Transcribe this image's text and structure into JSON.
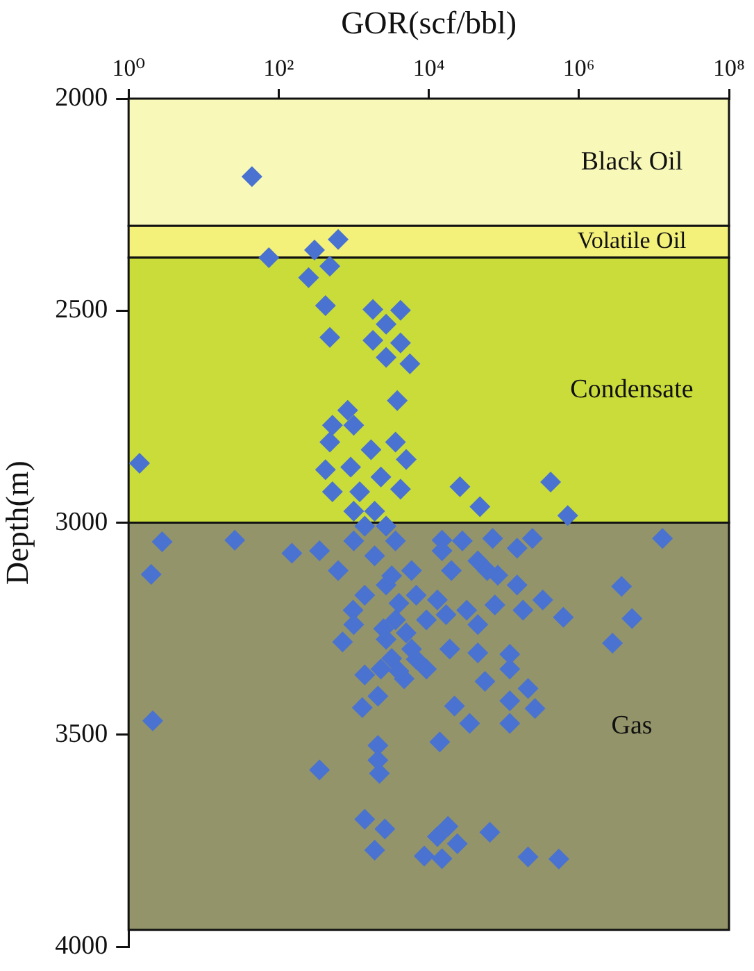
{
  "chart_data": {
    "type": "scatter",
    "xlabel": "GOR(scf/bbl)",
    "ylabel": "Depth(m)",
    "log": "x",
    "grid": false,
    "marker": "diamond",
    "legend": false,
    "xlim": [
      1,
      100000000
    ],
    "xticks": [
      {
        "value": 1,
        "label": "10⁰"
      },
      {
        "value": 100,
        "label": "10²"
      },
      {
        "value": 10000,
        "label": "10⁴"
      },
      {
        "value": 1000000,
        "label": "10⁶"
      },
      {
        "value": 100000000,
        "label": "10⁸"
      }
    ],
    "ylim": [
      4000,
      2000
    ],
    "yticks": [
      2000,
      2500,
      3000,
      3500,
      4000
    ],
    "bands": [
      {
        "axis": "y",
        "from": 2000,
        "to": 2300,
        "label": "Black Oil",
        "color": "#f8f9b8"
      },
      {
        "axis": "y",
        "from": 2300,
        "to": 2375,
        "label": "Volatile Oil",
        "color": "#f3f17a"
      },
      {
        "axis": "y",
        "from": 2375,
        "to": 3000,
        "label": "Condensate",
        "color": "#c9dc3a"
      },
      {
        "axis": "y",
        "from": 3000,
        "to": 3960,
        "label": "Gas",
        "color": "#93946a"
      }
    ],
    "series": [
      {
        "color": "#4a72d0",
        "x": [
          44,
          620,
          74,
          300,
          480,
          250,
          420,
          1800,
          4200,
          2700,
          480,
          1800,
          4200,
          2700,
          5600,
          3800,
          830,
          520,
          480,
          1000,
          3600,
          5000,
          1700,
          1.4,
          420,
          910,
          2300,
          1200,
          520,
          4200,
          26000,
          420000,
          48000,
          710000,
          1000,
          1900,
          1400,
          2700,
          2.8,
          26,
          2.0,
          150,
          350,
          620,
          1000,
          1900,
          3600,
          5900,
          15000,
          28000,
          15000,
          71000,
          150000,
          240000,
          13000000,
          20000,
          45000,
          83000,
          150000,
          60000,
          3700000,
          5100000,
          2800000,
          330000,
          620000,
          180000,
          76000,
          32000,
          13000,
          6800,
          2700,
          1400,
          980,
          1000,
          710,
          3600,
          9300,
          17000,
          45000,
          2700,
          5900,
          19000,
          45000,
          120000,
          120000,
          56000,
          210000,
          260000,
          120000,
          120000,
          35000,
          22000,
          14000,
          4700,
          2300,
          1400,
          1300,
          2100,
          9300,
          6800,
          2.1,
          2100,
          2100,
          2200,
          350,
          1400,
          2600,
          1900,
          8700,
          13000,
          18000,
          24000,
          15000,
          65000,
          210000,
          540000,
          3200,
          4000,
          2500,
          5000,
          3200,
          4000
        ],
        "values": [
          2184,
          2332,
          2375,
          2357,
          2395,
          2422,
          2488,
          2497,
          2499,
          2532,
          2563,
          2570,
          2576,
          2610,
          2625,
          2712,
          2735,
          2770,
          2810,
          2770,
          2810,
          2851,
          2828,
          2860,
          2875,
          2869,
          2892,
          2927,
          2927,
          2921,
          2915,
          2904,
          2962,
          2983,
          2973,
          2973,
          3008,
          3008,
          3045,
          3041,
          3122,
          3072,
          3066,
          3113,
          3043,
          3078,
          3043,
          3113,
          3041,
          3043,
          3066,
          3037,
          3060,
          3037,
          3037,
          3113,
          3090,
          3124,
          3147,
          3113,
          3150,
          3226,
          3284,
          3182,
          3223,
          3206,
          3194,
          3206,
          3182,
          3171,
          3147,
          3171,
          3206,
          3240,
          3281,
          3229,
          3229,
          3217,
          3240,
          3275,
          3298,
          3298,
          3307,
          3310,
          3345,
          3374,
          3391,
          3438,
          3420,
          3473,
          3473,
          3432,
          3517,
          3368,
          3345,
          3359,
          3436,
          3409,
          3345,
          3322,
          3467,
          3525,
          3560,
          3591,
          3583,
          3699,
          3722,
          3772,
          3786,
          3740,
          3716,
          3757,
          3792,
          3730,
          3788,
          3793,
          3125,
          3190,
          3250,
          3260,
          3320,
          3350
        ]
      }
    ]
  }
}
